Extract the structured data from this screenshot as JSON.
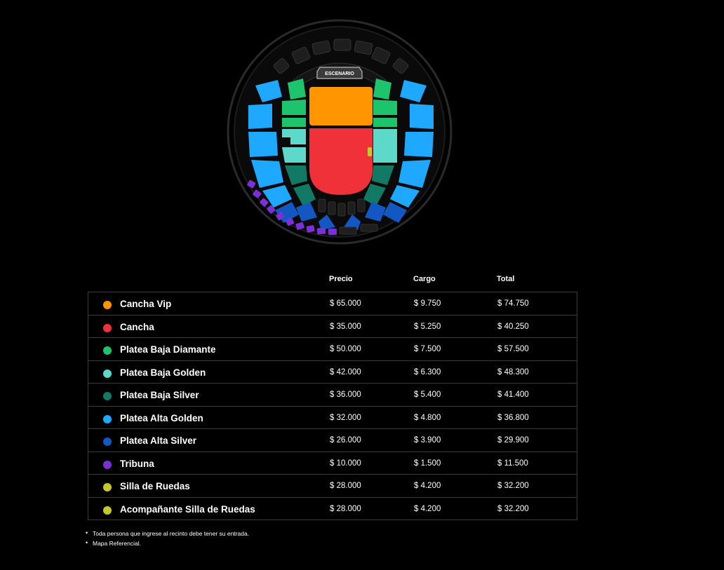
{
  "map": {
    "stage_label": "ESCENARIO"
  },
  "table": {
    "headers": {
      "precio": "Precio",
      "cargo": "Cargo",
      "total": "Total"
    },
    "rows": [
      {
        "name": "Cancha Vip",
        "color": "#ff9500",
        "precio": "$ 65.000",
        "cargo": "$ 9.750",
        "total": "$ 74.750"
      },
      {
        "name": "Cancha",
        "color": "#f0313a",
        "precio": "$ 35.000",
        "cargo": "$ 5.250",
        "total": "$ 40.250"
      },
      {
        "name": "Platea Baja Diamante",
        "color": "#1ec46b",
        "precio": "$ 50.000",
        "cargo": "$ 7.500",
        "total": "$ 57.500"
      },
      {
        "name": "Platea Baja Golden",
        "color": "#5ed8c8",
        "precio": "$ 42.000",
        "cargo": "$ 6.300",
        "total": "$ 48.300"
      },
      {
        "name": "Platea Baja Silver",
        "color": "#127a64",
        "precio": "$ 36.000",
        "cargo": "$ 5.400",
        "total": "$ 41.400"
      },
      {
        "name": "Platea Alta Golden",
        "color": "#1ea8ff",
        "precio": "$ 32.000",
        "cargo": "$ 4.800",
        "total": "$ 36.800"
      },
      {
        "name": "Platea Alta Silver",
        "color": "#1257c2",
        "precio": "$ 26.000",
        "cargo": "$ 3.900",
        "total": "$ 29.900"
      },
      {
        "name": "Tribuna",
        "color": "#7b30d6",
        "precio": "$ 10.000",
        "cargo": "$ 1.500",
        "total": "$ 11.500"
      },
      {
        "name": "Silla de Ruedas",
        "color": "#c6c82a",
        "precio": "$ 28.000",
        "cargo": "$ 4.200",
        "total": "$ 32.200"
      },
      {
        "name": "Acompañante Silla de Ruedas",
        "color": "#c6c82a",
        "precio": "$ 28.000",
        "cargo": "$ 4.200",
        "total": "$ 32.200"
      }
    ]
  },
  "notes": [
    "Toda persona que ingrese al recinto debe tener su entrada.",
    "Mapa Referencial."
  ]
}
